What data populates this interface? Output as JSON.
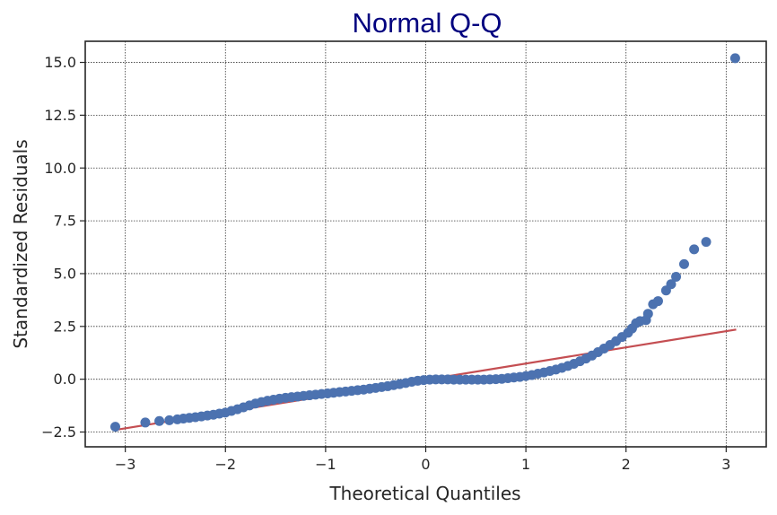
{
  "chart_data": {
    "type": "scatter",
    "title": "Normal Q-Q",
    "xlabel": "Theoretical Quantiles",
    "ylabel": "Standardized Residuals",
    "xlim": [
      -3.4,
      3.4
    ],
    "ylim": [
      -3.2,
      16.0
    ],
    "xticks": [
      -3,
      -2,
      -1,
      0,
      1,
      2,
      3
    ],
    "xtick_labels": [
      "−3",
      "−2",
      "−1",
      "0",
      "1",
      "2",
      "3"
    ],
    "yticks": [
      -2.5,
      0.0,
      2.5,
      5.0,
      7.5,
      10.0,
      12.5,
      15.0
    ],
    "ytick_labels": [
      "−2.5",
      "0.0",
      "2.5",
      "5.0",
      "7.5",
      "10.0",
      "12.5",
      "15.0"
    ],
    "grid": true,
    "colors": {
      "points": "#4c72b0",
      "reference_line": "#c44e52",
      "title": "#00007f"
    },
    "reference_line": {
      "x": [
        -3.1,
        3.1
      ],
      "y": [
        -2.4,
        2.35
      ]
    },
    "points": [
      [
        -3.1,
        -2.25
      ],
      [
        -2.8,
        -2.05
      ],
      [
        -2.66,
        -1.98
      ],
      [
        -2.56,
        -1.94
      ],
      [
        -2.48,
        -1.9
      ],
      [
        -2.42,
        -1.86
      ],
      [
        -2.36,
        -1.83
      ],
      [
        -2.3,
        -1.8
      ],
      [
        -2.24,
        -1.76
      ],
      [
        -2.18,
        -1.72
      ],
      [
        -2.12,
        -1.68
      ],
      [
        -2.06,
        -1.63
      ],
      [
        -2.0,
        -1.58
      ],
      [
        -1.94,
        -1.5
      ],
      [
        -1.88,
        -1.42
      ],
      [
        -1.82,
        -1.33
      ],
      [
        -1.76,
        -1.24
      ],
      [
        -1.7,
        -1.15
      ],
      [
        -1.64,
        -1.08
      ],
      [
        -1.58,
        -1.02
      ],
      [
        -1.52,
        -0.97
      ],
      [
        -1.46,
        -0.92
      ],
      [
        -1.4,
        -0.88
      ],
      [
        -1.34,
        -0.85
      ],
      [
        -1.28,
        -0.82
      ],
      [
        -1.22,
        -0.79
      ],
      [
        -1.16,
        -0.76
      ],
      [
        -1.1,
        -0.73
      ],
      [
        -1.04,
        -0.7
      ],
      [
        -0.98,
        -0.67
      ],
      [
        -0.92,
        -0.64
      ],
      [
        -0.86,
        -0.61
      ],
      [
        -0.8,
        -0.58
      ],
      [
        -0.74,
        -0.55
      ],
      [
        -0.68,
        -0.52
      ],
      [
        -0.62,
        -0.49
      ],
      [
        -0.56,
        -0.45
      ],
      [
        -0.5,
        -0.41
      ],
      [
        -0.44,
        -0.37
      ],
      [
        -0.38,
        -0.33
      ],
      [
        -0.32,
        -0.28
      ],
      [
        -0.26,
        -0.23
      ],
      [
        -0.2,
        -0.18
      ],
      [
        -0.14,
        -0.12
      ],
      [
        -0.08,
        -0.07
      ],
      [
        -0.02,
        -0.04
      ],
      [
        0.04,
        -0.02
      ],
      [
        0.1,
        -0.01
      ],
      [
        0.16,
        -0.01
      ],
      [
        0.22,
        -0.01
      ],
      [
        0.28,
        -0.02
      ],
      [
        0.34,
        -0.02
      ],
      [
        0.4,
        -0.02
      ],
      [
        0.46,
        -0.02
      ],
      [
        0.52,
        -0.02
      ],
      [
        0.58,
        -0.02
      ],
      [
        0.64,
        -0.01
      ],
      [
        0.7,
        0.0
      ],
      [
        0.76,
        0.02
      ],
      [
        0.82,
        0.05
      ],
      [
        0.88,
        0.08
      ],
      [
        0.94,
        0.11
      ],
      [
        1.0,
        0.15
      ],
      [
        1.06,
        0.2
      ],
      [
        1.12,
        0.26
      ],
      [
        1.18,
        0.32
      ],
      [
        1.24,
        0.39
      ],
      [
        1.3,
        0.46
      ],
      [
        1.36,
        0.54
      ],
      [
        1.42,
        0.63
      ],
      [
        1.48,
        0.73
      ],
      [
        1.54,
        0.85
      ],
      [
        1.6,
        0.98
      ],
      [
        1.66,
        1.12
      ],
      [
        1.72,
        1.28
      ],
      [
        1.78,
        1.45
      ],
      [
        1.84,
        1.62
      ],
      [
        1.9,
        1.8
      ],
      [
        1.96,
        2.0
      ],
      [
        2.02,
        2.2
      ],
      [
        2.06,
        2.4
      ],
      [
        2.1,
        2.65
      ],
      [
        2.14,
        2.75
      ],
      [
        2.2,
        2.8
      ],
      [
        2.22,
        3.1
      ],
      [
        2.27,
        3.55
      ],
      [
        2.32,
        3.7
      ],
      [
        2.4,
        4.2
      ],
      [
        2.45,
        4.5
      ],
      [
        2.5,
        4.85
      ],
      [
        2.58,
        5.45
      ],
      [
        2.68,
        6.15
      ],
      [
        2.8,
        6.5
      ],
      [
        3.09,
        15.2
      ]
    ]
  }
}
